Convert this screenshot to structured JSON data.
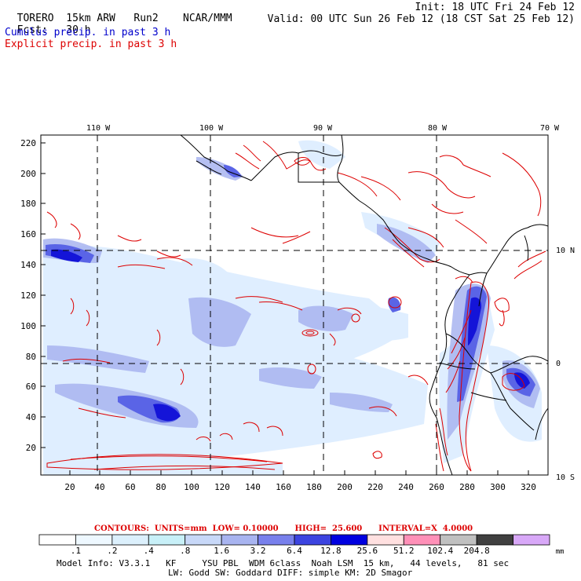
{
  "header": {
    "model": "TORERO  15km ARW",
    "run": "Run2",
    "center": "NCAR/MMM",
    "init": "Init: 18 UTC Fri 24 Feb 12",
    "fcst_label": "Fcst:",
    "fcst_value": "30 h",
    "valid": "Valid: 00 UTC Sun 26 Feb 12 (18 CST Sat 25 Feb 12)",
    "cumulus": "Cumulus precip. in past 3 h",
    "explicit": "Explicit precip. in past 3 h"
  },
  "map": {
    "lon_labels": [
      "110 W",
      "100 W",
      "90 W",
      "80 W",
      "70 W"
    ],
    "lat_labels": [
      "10 N",
      "0",
      "10 S"
    ],
    "y_ticks": [
      "220",
      "200",
      "180",
      "160",
      "140",
      "120",
      "100",
      "80",
      "60",
      "40",
      "20"
    ],
    "x_ticks": [
      "20",
      "40",
      "60",
      "80",
      "100",
      "120",
      "140",
      "160",
      "180",
      "200",
      "220",
      "240",
      "260",
      "280",
      "300",
      "320"
    ],
    "colors": {
      "shade_light": "#dfeeff",
      "shade_mid": "#a8b4f0",
      "shade_strong": "#5a64e6",
      "shade_max": "#1414d8",
      "contour": "#dd0000",
      "coast": "#000000"
    }
  },
  "contour_info": {
    "text": "CONTOURS:  UNITS=mm  LOW= 0.10000      HIGH=  25.600      INTERVAL=X  4.0000"
  },
  "colorbar": {
    "labels": [
      ".1",
      ".2",
      ".4",
      ".8",
      "1.6",
      "3.2",
      "6.4",
      "12.8",
      "25.6",
      "51.2",
      "102.4",
      "204.8"
    ],
    "unit": "mm",
    "colors": [
      "#ffffff",
      "#eef8ff",
      "#dcf0fc",
      "#c8f0f8",
      "#c8d8f8",
      "#a8b4f0",
      "#7880ec",
      "#3c44e0",
      "#0000e0",
      "#ffe0e0",
      "#ff90b8",
      "#c0c0c0",
      "#404040",
      "#d8a8f8"
    ]
  },
  "footer": {
    "line1": "Model Info: V3.3.1   KF     YSU PBL  WDM 6class  Noah LSM  15 km,   44 levels,   81 sec",
    "line2": "LW: Godd SW: Goddard DIFF: simple KM: 2D Smagor"
  }
}
